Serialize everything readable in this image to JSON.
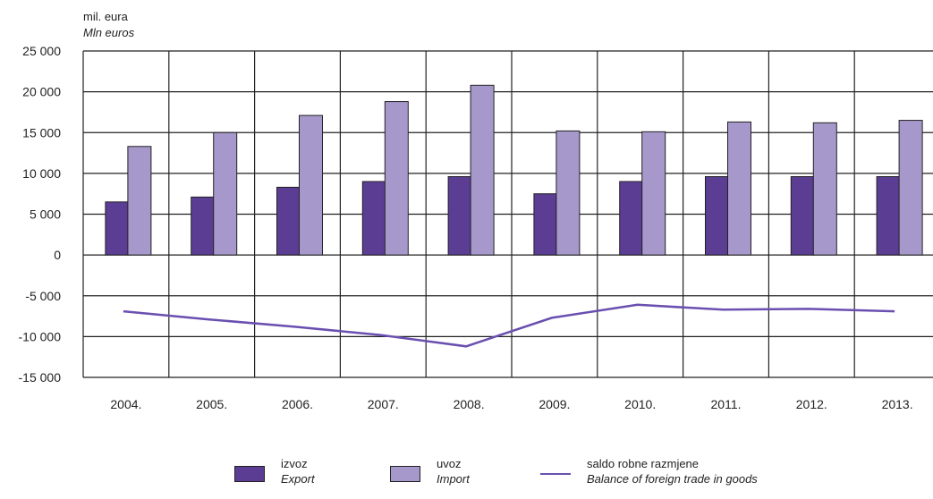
{
  "unit_label": {
    "line1": "mil. eura",
    "line2": "Mln euros"
  },
  "colors": {
    "export": "#5b3d94",
    "import": "#a798cc",
    "balance": "#6a4fb0",
    "grid": "#222222"
  },
  "legend": [
    {
      "key": "export",
      "label1": "izvoz",
      "label2": "Export",
      "kind": "bar"
    },
    {
      "key": "import",
      "label1": "uvoz",
      "label2": "Import",
      "kind": "bar"
    },
    {
      "key": "balance",
      "label1": "saldo robne razmjene",
      "label2": "Balance of foreign trade in goods",
      "kind": "line"
    }
  ],
  "chart_data": {
    "type": "bar",
    "categories": [
      "2004.",
      "2005.",
      "2006.",
      "2007.",
      "2008.",
      "2009.",
      "2010.",
      "2011.",
      "2012.",
      "2013."
    ],
    "ylim": [
      -15000,
      25000
    ],
    "yticks": [
      25000,
      20000,
      15000,
      10000,
      5000,
      0,
      -5000,
      -10000,
      -15000
    ],
    "ytick_labels": [
      "25 000",
      "20 000",
      "15 000",
      "10 000",
      "5 000",
      "0",
      "-5 000",
      "-10 000",
      "-15 000"
    ],
    "grid": true,
    "legend_position": "bottom",
    "series": [
      {
        "name": "izvoz / Export",
        "type": "bar",
        "values": [
          6500,
          7100,
          8300,
          9000,
          9600,
          7500,
          9000,
          9600,
          9600,
          9600
        ]
      },
      {
        "name": "uvoz / Import",
        "type": "bar",
        "values": [
          13300,
          15000,
          17100,
          18800,
          20800,
          15200,
          15100,
          16300,
          16200,
          16500
        ]
      },
      {
        "name": "saldo robne razmjene / Balance of foreign trade in goods",
        "type": "line",
        "values": [
          -6900,
          -7900,
          -8800,
          -9800,
          -11200,
          -7700,
          -6100,
          -6700,
          -6600,
          -6900
        ]
      }
    ]
  }
}
